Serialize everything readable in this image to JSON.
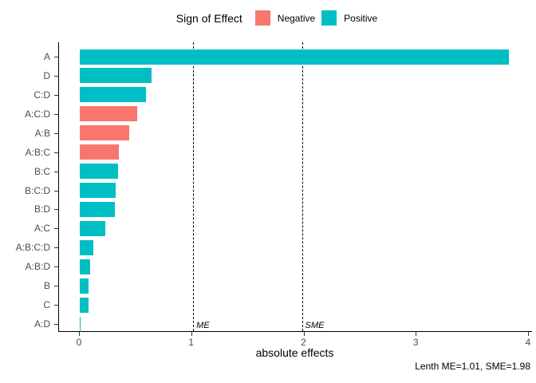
{
  "legend": {
    "title": "Sign of Effect",
    "items": [
      {
        "label": "Negative",
        "color": "#F8766D"
      },
      {
        "label": "Positive",
        "color": "#00BFC4"
      }
    ]
  },
  "chart_data": {
    "type": "bar",
    "orientation": "horizontal",
    "title": "",
    "xlabel": "absolute effects",
    "ylabel": "",
    "xlim": [
      0,
      4
    ],
    "x_ticks": [
      0,
      1,
      2,
      3,
      4
    ],
    "grid": false,
    "legend_position": "top",
    "legend_title": "Sign of Effect",
    "categories": [
      "A",
      "D",
      "C:D",
      "A:C:D",
      "A:B",
      "A:B:C",
      "B:C",
      "B:C:D",
      "B:D",
      "A:C",
      "A:B:C:D",
      "A:B:D",
      "B",
      "C",
      "A:D"
    ],
    "series": [
      {
        "name": "absolute effect",
        "values": [
          3.82,
          0.64,
          0.59,
          0.51,
          0.44,
          0.35,
          0.34,
          0.32,
          0.31,
          0.23,
          0.12,
          0.09,
          0.08,
          0.08,
          0.01
        ]
      }
    ],
    "signs": [
      "Positive",
      "Positive",
      "Positive",
      "Negative",
      "Negative",
      "Negative",
      "Positive",
      "Positive",
      "Positive",
      "Positive",
      "Positive",
      "Positive",
      "Positive",
      "Positive",
      "Positive"
    ],
    "colors": {
      "Negative": "#F8766D",
      "Positive": "#00BFC4"
    },
    "reference_lines": [
      {
        "label": "ME",
        "value": 1.01,
        "style": "dashed"
      },
      {
        "label": "SME",
        "value": 1.98,
        "style": "dashed"
      }
    ],
    "caption": "Lenth ME=1.01, SME=1.98"
  }
}
